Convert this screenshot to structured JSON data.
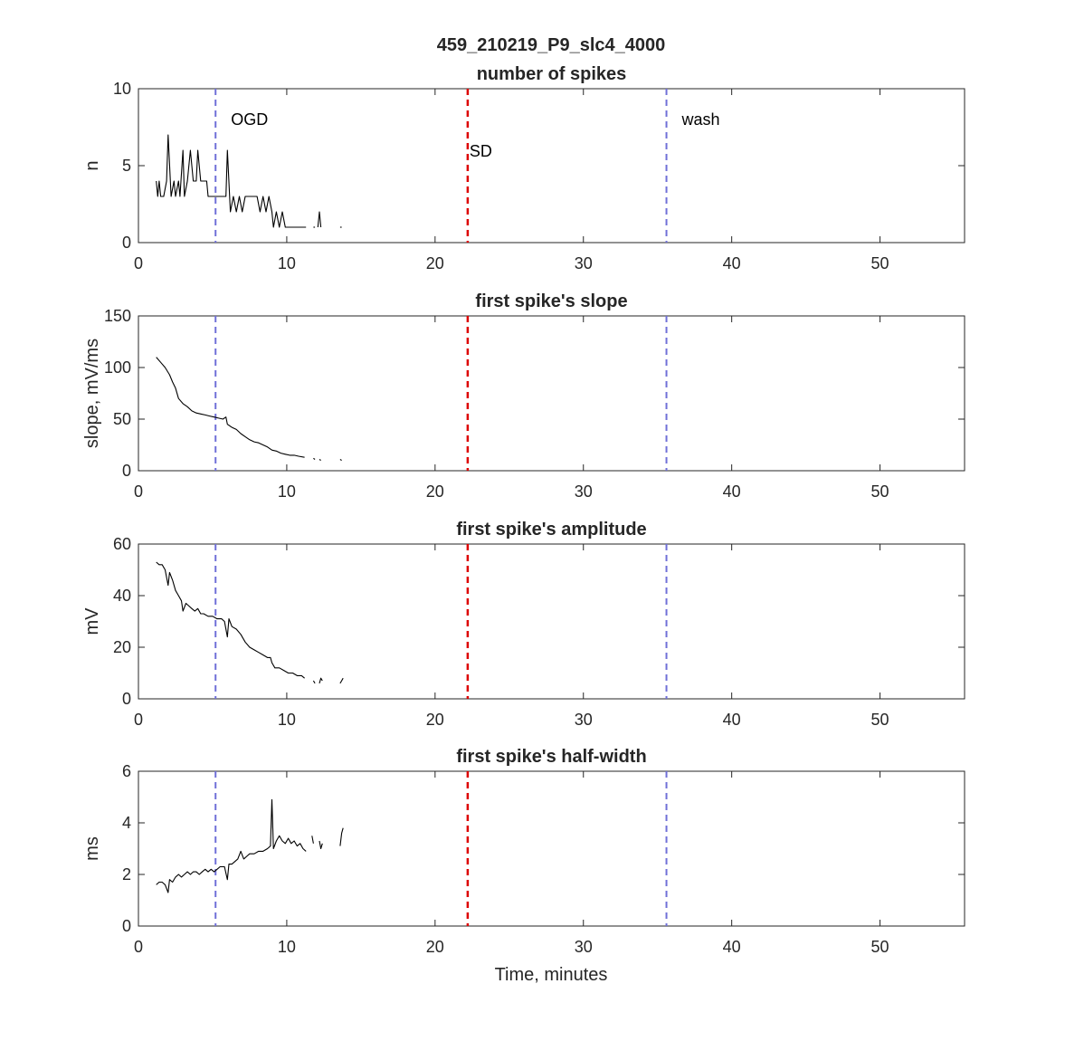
{
  "figure": {
    "title": "459_210219_P9_slc4_4000",
    "xlabel": "Time, minutes",
    "colors": {
      "axes": "#262626",
      "data": "#000000",
      "marker_blue": "#7070d8",
      "marker_red": "#dd0000"
    }
  },
  "chart_data": [
    {
      "type": "line",
      "title": "number of spikes",
      "ylabel": "n",
      "xlim": [
        0,
        55.7
      ],
      "ylim": [
        0,
        10
      ],
      "xticks": [
        0,
        10,
        20,
        30,
        40,
        50
      ],
      "yticks": [
        0,
        5,
        10
      ],
      "markers": [
        {
          "x": 5.2,
          "style": "blue-dashed",
          "label": "OGD"
        },
        {
          "x": 22.2,
          "style": "red-dashed",
          "label": "SD"
        },
        {
          "x": 35.6,
          "style": "blue-dashed",
          "label": "wash"
        }
      ],
      "segments": [
        [
          [
            1.2,
            4
          ],
          [
            1.3,
            3
          ],
          [
            1.4,
            4
          ],
          [
            1.5,
            3
          ],
          [
            1.7,
            3
          ],
          [
            1.9,
            4
          ],
          [
            2.0,
            7
          ],
          [
            2.2,
            3
          ],
          [
            2.4,
            4
          ],
          [
            2.5,
            3
          ],
          [
            2.7,
            4
          ],
          [
            2.8,
            3
          ],
          [
            3.0,
            6
          ],
          [
            3.1,
            3
          ],
          [
            3.3,
            4
          ],
          [
            3.5,
            6
          ],
          [
            3.7,
            4
          ],
          [
            3.9,
            4
          ],
          [
            4.0,
            6
          ],
          [
            4.2,
            4
          ],
          [
            4.4,
            4
          ],
          [
            4.6,
            4
          ],
          [
            4.7,
            3
          ],
          [
            5.2,
            3
          ],
          [
            5.6,
            3
          ],
          [
            5.9,
            3
          ],
          [
            6.0,
            6
          ],
          [
            6.2,
            2
          ],
          [
            6.4,
            3
          ],
          [
            6.6,
            2
          ],
          [
            6.8,
            3
          ],
          [
            7.0,
            2
          ],
          [
            7.2,
            3
          ],
          [
            7.6,
            3
          ],
          [
            8.0,
            3
          ],
          [
            8.2,
            2
          ],
          [
            8.4,
            3
          ],
          [
            8.6,
            2
          ],
          [
            8.8,
            3
          ],
          [
            9.0,
            2
          ],
          [
            9.1,
            1
          ],
          [
            9.3,
            2
          ],
          [
            9.5,
            1
          ],
          [
            9.7,
            2
          ],
          [
            9.9,
            1
          ],
          [
            11.3,
            1
          ]
        ],
        [
          [
            11.8,
            1
          ],
          [
            11.9,
            1
          ]
        ],
        [
          [
            12.1,
            1
          ],
          [
            12.2,
            2
          ],
          [
            12.3,
            1
          ]
        ],
        [
          [
            13.6,
            1
          ],
          [
            13.7,
            1
          ]
        ]
      ]
    },
    {
      "type": "line",
      "title": "first spike's slope",
      "ylabel": "slope, mV/ms",
      "xlim": [
        0,
        55.7
      ],
      "ylim": [
        0,
        150
      ],
      "xticks": [
        0,
        10,
        20,
        30,
        40,
        50
      ],
      "yticks": [
        0,
        50,
        100,
        150
      ],
      "markers": [
        {
          "x": 5.2,
          "style": "blue-dashed"
        },
        {
          "x": 22.2,
          "style": "red-dashed"
        },
        {
          "x": 35.6,
          "style": "blue-dashed"
        }
      ],
      "segments": [
        [
          [
            1.2,
            110
          ],
          [
            1.5,
            105
          ],
          [
            1.8,
            100
          ],
          [
            2.1,
            93
          ],
          [
            2.3,
            86
          ],
          [
            2.5,
            80
          ],
          [
            2.7,
            70
          ],
          [
            3.0,
            65
          ],
          [
            3.3,
            62
          ],
          [
            3.6,
            58
          ],
          [
            3.9,
            56
          ],
          [
            4.2,
            55
          ],
          [
            4.5,
            54
          ],
          [
            4.8,
            53
          ],
          [
            5.1,
            52
          ],
          [
            5.4,
            51
          ],
          [
            5.7,
            50
          ],
          [
            5.9,
            52
          ],
          [
            6.0,
            45
          ],
          [
            6.3,
            42
          ],
          [
            6.6,
            40
          ],
          [
            6.9,
            36
          ],
          [
            7.2,
            33
          ],
          [
            7.5,
            30
          ],
          [
            7.8,
            28
          ],
          [
            8.1,
            27
          ],
          [
            8.4,
            25
          ],
          [
            8.7,
            23
          ],
          [
            9.0,
            20
          ],
          [
            9.3,
            19
          ],
          [
            9.6,
            17
          ],
          [
            9.9,
            16
          ],
          [
            10.2,
            15
          ],
          [
            10.5,
            15
          ],
          [
            10.8,
            14
          ],
          [
            11.2,
            13
          ]
        ],
        [
          [
            11.8,
            12
          ],
          [
            11.9,
            11
          ]
        ],
        [
          [
            12.2,
            11
          ],
          [
            12.3,
            10
          ]
        ],
        [
          [
            13.6,
            11
          ],
          [
            13.7,
            10
          ]
        ]
      ]
    },
    {
      "type": "line",
      "title": "first spike's amplitude",
      "ylabel": "mV",
      "xlim": [
        0,
        55.7
      ],
      "ylim": [
        0,
        60
      ],
      "xticks": [
        0,
        10,
        20,
        30,
        40,
        50
      ],
      "yticks": [
        0,
        20,
        40,
        60
      ],
      "markers": [
        {
          "x": 5.2,
          "style": "blue-dashed"
        },
        {
          "x": 22.2,
          "style": "red-dashed"
        },
        {
          "x": 35.6,
          "style": "blue-dashed"
        }
      ],
      "segments": [
        [
          [
            1.2,
            53
          ],
          [
            1.4,
            52
          ],
          [
            1.6,
            52
          ],
          [
            1.8,
            50
          ],
          [
            2.0,
            44
          ],
          [
            2.1,
            49
          ],
          [
            2.3,
            46
          ],
          [
            2.5,
            42
          ],
          [
            2.7,
            40
          ],
          [
            2.9,
            38
          ],
          [
            3.0,
            34
          ],
          [
            3.2,
            37
          ],
          [
            3.4,
            36
          ],
          [
            3.6,
            35
          ],
          [
            3.8,
            34
          ],
          [
            4.0,
            35
          ],
          [
            4.2,
            33
          ],
          [
            4.4,
            33
          ],
          [
            4.7,
            32
          ],
          [
            5.0,
            32
          ],
          [
            5.3,
            31
          ],
          [
            5.6,
            31
          ],
          [
            5.8,
            30
          ],
          [
            6.0,
            24
          ],
          [
            6.1,
            31
          ],
          [
            6.3,
            28
          ],
          [
            6.6,
            27
          ],
          [
            6.9,
            25
          ],
          [
            7.2,
            22
          ],
          [
            7.5,
            20
          ],
          [
            7.8,
            19
          ],
          [
            8.1,
            18
          ],
          [
            8.4,
            17
          ],
          [
            8.7,
            16
          ],
          [
            8.9,
            16
          ],
          [
            9.0,
            14
          ],
          [
            9.2,
            12
          ],
          [
            9.5,
            12
          ],
          [
            9.8,
            11
          ],
          [
            10.1,
            10
          ],
          [
            10.4,
            10
          ],
          [
            10.7,
            9
          ],
          [
            11.0,
            9
          ],
          [
            11.2,
            8
          ]
        ],
        [
          [
            11.8,
            7
          ],
          [
            11.9,
            6
          ]
        ],
        [
          [
            12.2,
            6
          ],
          [
            12.3,
            8
          ],
          [
            12.4,
            7
          ]
        ],
        [
          [
            13.6,
            6
          ],
          [
            13.7,
            7
          ],
          [
            13.8,
            8
          ]
        ]
      ]
    },
    {
      "type": "line",
      "title": "first spike's half-width",
      "ylabel": "ms",
      "xlabel": "Time, minutes",
      "xlim": [
        0,
        55.7
      ],
      "ylim": [
        0,
        6
      ],
      "xticks": [
        0,
        10,
        20,
        30,
        40,
        50
      ],
      "yticks": [
        0,
        2,
        4,
        6
      ],
      "markers": [
        {
          "x": 5.2,
          "style": "blue-dashed"
        },
        {
          "x": 22.2,
          "style": "red-dashed"
        },
        {
          "x": 35.6,
          "style": "blue-dashed"
        }
      ],
      "segments": [
        [
          [
            1.2,
            1.6
          ],
          [
            1.4,
            1.7
          ],
          [
            1.6,
            1.7
          ],
          [
            1.8,
            1.6
          ],
          [
            2.0,
            1.3
          ],
          [
            2.1,
            1.8
          ],
          [
            2.3,
            1.7
          ],
          [
            2.5,
            1.9
          ],
          [
            2.7,
            2.0
          ],
          [
            2.9,
            1.9
          ],
          [
            3.1,
            2.0
          ],
          [
            3.3,
            2.1
          ],
          [
            3.5,
            2.0
          ],
          [
            3.7,
            2.1
          ],
          [
            3.9,
            2.1
          ],
          [
            4.1,
            2.0
          ],
          [
            4.3,
            2.1
          ],
          [
            4.5,
            2.2
          ],
          [
            4.7,
            2.1
          ],
          [
            4.9,
            2.2
          ],
          [
            5.1,
            2.1
          ],
          [
            5.3,
            2.2
          ],
          [
            5.5,
            2.3
          ],
          [
            5.8,
            2.3
          ],
          [
            6.0,
            1.8
          ],
          [
            6.1,
            2.4
          ],
          [
            6.3,
            2.4
          ],
          [
            6.5,
            2.5
          ],
          [
            6.7,
            2.6
          ],
          [
            6.9,
            2.9
          ],
          [
            7.1,
            2.6
          ],
          [
            7.3,
            2.7
          ],
          [
            7.5,
            2.8
          ],
          [
            7.8,
            2.8
          ],
          [
            8.1,
            2.9
          ],
          [
            8.4,
            2.9
          ],
          [
            8.7,
            3.0
          ],
          [
            8.9,
            3.1
          ],
          [
            9.0,
            4.9
          ],
          [
            9.1,
            3.0
          ],
          [
            9.3,
            3.3
          ],
          [
            9.5,
            3.5
          ],
          [
            9.7,
            3.3
          ],
          [
            9.9,
            3.2
          ],
          [
            10.1,
            3.4
          ],
          [
            10.3,
            3.2
          ],
          [
            10.5,
            3.3
          ],
          [
            10.7,
            3.1
          ],
          [
            10.9,
            3.2
          ],
          [
            11.1,
            3.0
          ],
          [
            11.3,
            2.9
          ]
        ],
        [
          [
            11.7,
            3.5
          ],
          [
            11.8,
            3.2
          ]
        ],
        [
          [
            12.2,
            3.3
          ],
          [
            12.3,
            3.0
          ],
          [
            12.4,
            3.2
          ]
        ],
        [
          [
            13.6,
            3.1
          ],
          [
            13.7,
            3.6
          ],
          [
            13.8,
            3.8
          ]
        ]
      ]
    }
  ]
}
